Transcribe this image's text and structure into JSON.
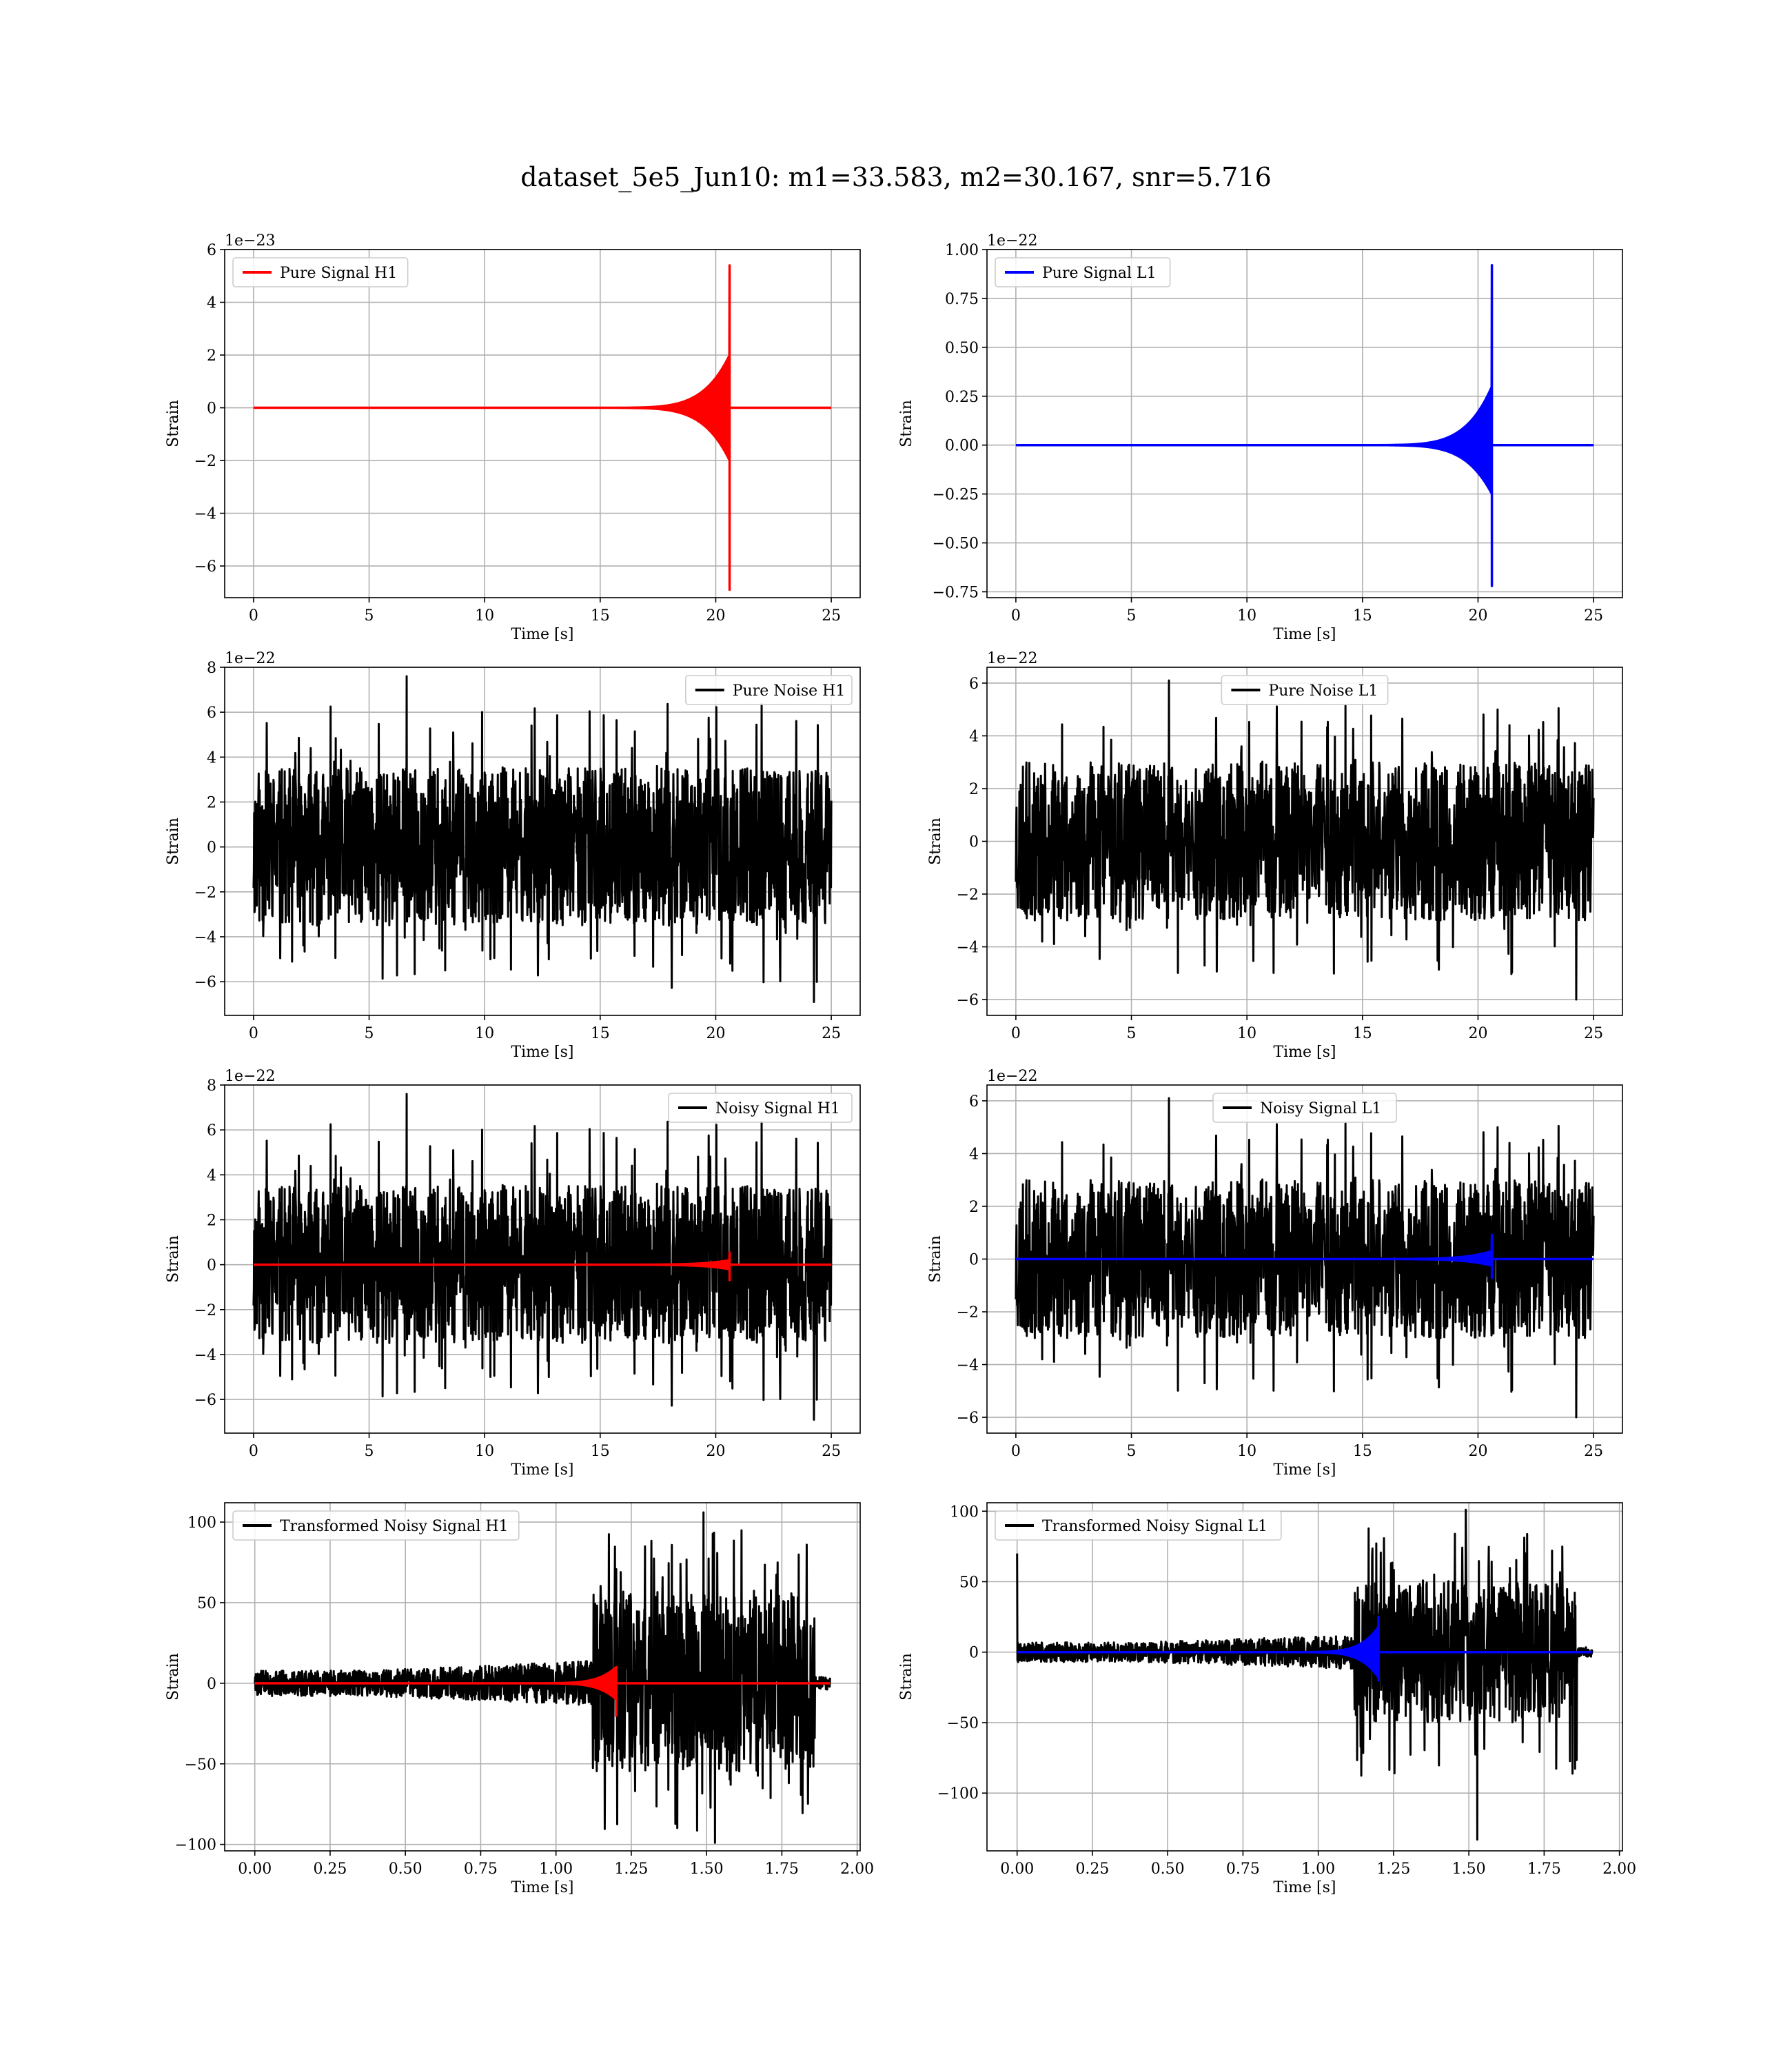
{
  "figure": {
    "title": "dataset_5e5_Jun10: m1=33.583, m2=30.167, snr=5.716"
  },
  "chart_data": [
    {
      "type": "line",
      "id": "pure-signal-h1",
      "xlabel": "Time [s]",
      "ylabel": "Strain",
      "offset_text": "1e−23",
      "xlim": [
        -1.25,
        26.25
      ],
      "ylim": [
        -7.2,
        6.0
      ],
      "xticks": [
        0,
        5,
        10,
        15,
        20,
        25
      ],
      "xtick_labels": [
        "0",
        "5",
        "10",
        "15",
        "20",
        "25"
      ],
      "yticks": [
        -6,
        -4,
        -2,
        0,
        2,
        4,
        6
      ],
      "ytick_labels": [
        "−6",
        "−4",
        "−2",
        "0",
        "2",
        "4",
        "6"
      ],
      "legend_position": "upper-left",
      "series": [
        {
          "name": "Pure Signal H1",
          "color": "#ff0000",
          "kind": "chirp",
          "x_start": 0,
          "x_end": 25,
          "merger": 20.6,
          "env_max": 2.0,
          "env_lower": -2.0,
          "peak_high": 5.4,
          "peak_low": -6.9,
          "inspiral_start": 14.0
        }
      ]
    },
    {
      "type": "line",
      "id": "pure-signal-l1",
      "xlabel": "Time [s]",
      "ylabel": "Strain",
      "offset_text": "1e−22",
      "xlim": [
        -1.25,
        26.25
      ],
      "ylim": [
        -0.78,
        1.0
      ],
      "xticks": [
        0,
        5,
        10,
        15,
        20,
        25
      ],
      "xtick_labels": [
        "0",
        "5",
        "10",
        "15",
        "20",
        "25"
      ],
      "yticks": [
        -0.75,
        -0.5,
        -0.25,
        0.0,
        0.25,
        0.5,
        0.75,
        1.0
      ],
      "ytick_labels": [
        "−0.75",
        "−0.50",
        "−0.25",
        "0.00",
        "0.25",
        "0.50",
        "0.75",
        "1.00"
      ],
      "legend_position": "upper-left",
      "series": [
        {
          "name": "Pure Signal L1",
          "color": "#0000ff",
          "kind": "chirp",
          "x_start": 0,
          "x_end": 25,
          "merger": 20.6,
          "env_max": 0.3,
          "env_lower": -0.25,
          "peak_high": 0.92,
          "peak_low": -0.72,
          "inspiral_start": 14.0
        }
      ]
    },
    {
      "type": "line",
      "id": "pure-noise-h1",
      "xlabel": "Time [s]",
      "ylabel": "Strain",
      "offset_text": "1e−22",
      "xlim": [
        -1.25,
        26.25
      ],
      "ylim": [
        -7.5,
        8.0
      ],
      "xticks": [
        0,
        5,
        10,
        15,
        20,
        25
      ],
      "xtick_labels": [
        "0",
        "5",
        "10",
        "15",
        "20",
        "25"
      ],
      "yticks": [
        -6,
        -4,
        -2,
        0,
        2,
        4,
        6,
        8
      ],
      "ytick_labels": [
        "−6",
        "−4",
        "−2",
        "0",
        "2",
        "4",
        "6",
        "8"
      ],
      "legend_position": "upper-right",
      "series": [
        {
          "name": "Pure Noise H1",
          "color": "#000000",
          "kind": "noise",
          "x_start": 0,
          "x_end": 25,
          "band": 3.5,
          "spike_max": 7.6,
          "spike_min": -6.9,
          "seed": 11
        }
      ]
    },
    {
      "type": "line",
      "id": "pure-noise-l1",
      "xlabel": "Time [s]",
      "ylabel": "Strain",
      "offset_text": "1e−22",
      "xlim": [
        -1.25,
        26.25
      ],
      "ylim": [
        -6.6,
        6.6
      ],
      "xticks": [
        0,
        5,
        10,
        15,
        20,
        25
      ],
      "xtick_labels": [
        "0",
        "5",
        "10",
        "15",
        "20",
        "25"
      ],
      "yticks": [
        -6,
        -4,
        -2,
        0,
        2,
        4,
        6
      ],
      "ytick_labels": [
        "−6",
        "−4",
        "−2",
        "0",
        "2",
        "4",
        "6"
      ],
      "legend_position": "upper-center",
      "series": [
        {
          "name": "Pure Noise L1",
          "color": "#000000",
          "kind": "noise",
          "x_start": 0,
          "x_end": 25,
          "band": 3.0,
          "spike_max": 6.1,
          "spike_min": -6.0,
          "seed": 23
        }
      ]
    },
    {
      "type": "line",
      "id": "noisy-signal-h1",
      "xlabel": "Time [s]",
      "ylabel": "Strain",
      "offset_text": "1e−22",
      "xlim": [
        -1.25,
        26.25
      ],
      "ylim": [
        -7.5,
        8.0
      ],
      "xticks": [
        0,
        5,
        10,
        15,
        20,
        25
      ],
      "xtick_labels": [
        "0",
        "5",
        "10",
        "15",
        "20",
        "25"
      ],
      "yticks": [
        -6,
        -4,
        -2,
        0,
        2,
        4,
        6,
        8
      ],
      "ytick_labels": [
        "−6",
        "−4",
        "−2",
        "0",
        "2",
        "4",
        "6",
        "8"
      ],
      "legend_position": "upper-right",
      "series": [
        {
          "name": "Noisy Signal H1",
          "color": "#000000",
          "kind": "noise",
          "x_start": 0,
          "x_end": 25,
          "band": 3.5,
          "spike_max": 7.6,
          "spike_min": -6.9,
          "seed": 11
        },
        {
          "name": "",
          "color": "#ff0000",
          "kind": "chirp",
          "x_start": 0,
          "x_end": 25,
          "merger": 20.6,
          "env_max": 0.2,
          "env_lower": -0.2,
          "peak_high": 0.54,
          "peak_low": -0.69,
          "inspiral_start": 14.0
        }
      ]
    },
    {
      "type": "line",
      "id": "noisy-signal-l1",
      "xlabel": "Time [s]",
      "ylabel": "Strain",
      "offset_text": "1e−22",
      "xlim": [
        -1.25,
        26.25
      ],
      "ylim": [
        -6.6,
        6.6
      ],
      "xticks": [
        0,
        5,
        10,
        15,
        20,
        25
      ],
      "xtick_labels": [
        "0",
        "5",
        "10",
        "15",
        "20",
        "25"
      ],
      "yticks": [
        -6,
        -4,
        -2,
        0,
        2,
        4,
        6
      ],
      "ytick_labels": [
        "−6",
        "−4",
        "−2",
        "0",
        "2",
        "4",
        "6"
      ],
      "legend_position": "upper-center",
      "series": [
        {
          "name": "Noisy Signal L1",
          "color": "#000000",
          "kind": "noise",
          "x_start": 0,
          "x_end": 25,
          "band": 3.0,
          "spike_max": 6.1,
          "spike_min": -6.0,
          "seed": 23
        },
        {
          "name": "",
          "color": "#0000ff",
          "kind": "chirp",
          "x_start": 0,
          "x_end": 25,
          "merger": 20.6,
          "env_max": 0.3,
          "env_lower": -0.25,
          "peak_high": 0.92,
          "peak_low": -0.72,
          "inspiral_start": 14.0
        }
      ]
    },
    {
      "type": "line",
      "id": "transformed-noisy-signal-h1",
      "xlabel": "Time [s]",
      "ylabel": "Strain",
      "offset_text": "",
      "xlim": [
        -0.1,
        2.01
      ],
      "ylim": [
        -104,
        112
      ],
      "xticks": [
        0.0,
        0.25,
        0.5,
        0.75,
        1.0,
        1.25,
        1.5,
        1.75,
        2.0
      ],
      "xtick_labels": [
        "0.00",
        "0.25",
        "0.50",
        "0.75",
        "1.00",
        "1.25",
        "1.50",
        "1.75",
        "2.00"
      ],
      "yticks": [
        -100,
        -50,
        0,
        50,
        100
      ],
      "ytick_labels": [
        "−100",
        "−50",
        "0",
        "50",
        "100"
      ],
      "legend_position": "upper-left",
      "series": [
        {
          "name": "Transformed Noisy Signal H1",
          "color": "#000000",
          "kind": "transformed",
          "x_start": 0,
          "x_end": 1.91,
          "low_band": 8,
          "mid_band": 14,
          "step_at": 1.12,
          "high_band": 55,
          "end_at": 1.86,
          "spike_max": 106,
          "spike_min": -99,
          "first_spike": 0,
          "seed": 5
        },
        {
          "name": "",
          "color": "#ff0000",
          "kind": "chirp",
          "x_start": 0,
          "x_end": 1.91,
          "merger": 1.2,
          "env_max": 10,
          "env_lower": -10,
          "peak_high": 10,
          "peak_low": -20,
          "inspiral_start": 0.85
        }
      ]
    },
    {
      "type": "line",
      "id": "transformed-noisy-signal-l1",
      "xlabel": "Time [s]",
      "ylabel": "Strain",
      "offset_text": "",
      "xlim": [
        -0.1,
        2.01
      ],
      "ylim": [
        -141,
        106
      ],
      "xticks": [
        0.0,
        0.25,
        0.5,
        0.75,
        1.0,
        1.25,
        1.5,
        1.75,
        2.0
      ],
      "xtick_labels": [
        "0.00",
        "0.25",
        "0.50",
        "0.75",
        "1.00",
        "1.25",
        "1.50",
        "1.75",
        "2.00"
      ],
      "yticks": [
        -100,
        -50,
        0,
        50,
        100
      ],
      "ytick_labels": [
        "−100",
        "−50",
        "0",
        "50",
        "100"
      ],
      "legend_position": "upper-left",
      "series": [
        {
          "name": "Transformed Noisy Signal L1",
          "color": "#000000",
          "kind": "transformed",
          "x_start": 0,
          "x_end": 1.91,
          "low_band": 7,
          "mid_band": 12,
          "step_at": 1.12,
          "high_band": 50,
          "end_at": 1.86,
          "spike_max": 101,
          "spike_min": -133,
          "first_spike": 70,
          "seed": 9
        },
        {
          "name": "",
          "color": "#0000ff",
          "kind": "chirp",
          "x_start": 0,
          "x_end": 1.91,
          "merger": 1.2,
          "env_max": 18,
          "env_lower": -18,
          "peak_high": 25,
          "peak_low": -20,
          "inspiral_start": 0.85
        }
      ]
    }
  ]
}
